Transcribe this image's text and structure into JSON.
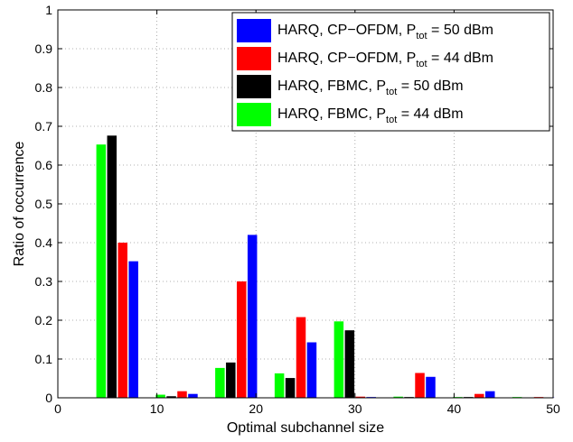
{
  "chart_data": {
    "type": "bar",
    "xlabel": "Optimal subchannel size",
    "ylabel": "Ratio of occurrence",
    "xlim": [
      0,
      50
    ],
    "ylim": [
      0,
      1
    ],
    "xticks": [
      0,
      10,
      20,
      30,
      40,
      50
    ],
    "yticks": [
      0,
      0.1,
      0.2,
      0.3,
      0.4,
      0.5,
      0.6,
      0.7,
      0.8,
      0.9,
      1
    ],
    "grid": true,
    "legend_position": "top-right",
    "group_centers": [
      6,
      12,
      18,
      24,
      30,
      36,
      42,
      48
    ],
    "series": [
      {
        "name_parts": [
          "HARQ, CP−OFDM, P",
          "tot",
          " = 50 dBm"
        ],
        "color": "#0000ff",
        "values": [
          0.352,
          0.01,
          0.42,
          0.143,
          0.002,
          0.054,
          0.017,
          0.001
        ]
      },
      {
        "name_parts": [
          "HARQ, CP−OFDM, P",
          "tot",
          " = 44 dBm"
        ],
        "color": "#ff0000",
        "values": [
          0.4,
          0.017,
          0.3,
          0.208,
          0.003,
          0.064,
          0.01,
          0.002
        ]
      },
      {
        "name_parts": [
          "HARQ, FBMC, P",
          "tot",
          " = 50 dBm"
        ],
        "color": "#000000",
        "values": [
          0.676,
          0.004,
          0.091,
          0.051,
          0.174,
          0.002,
          0.002,
          0.001
        ]
      },
      {
        "name_parts": [
          "HARQ, FBMC, P",
          "tot",
          " = 44 dBm"
        ],
        "color": "#00ff00",
        "values": [
          0.653,
          0.008,
          0.077,
          0.063,
          0.197,
          0.003,
          0.002,
          0.002
        ]
      }
    ],
    "draw_order": [
      3,
      2,
      1,
      0
    ]
  }
}
